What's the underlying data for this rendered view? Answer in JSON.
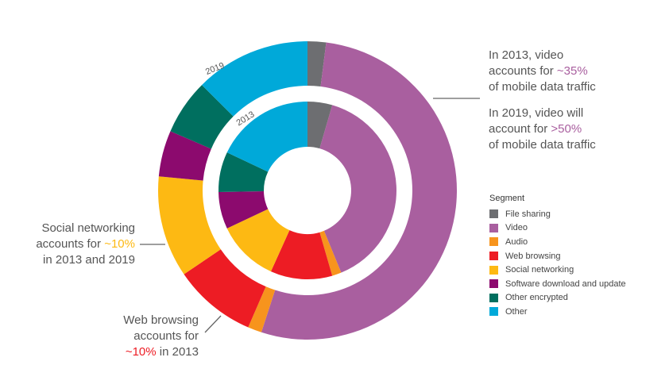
{
  "chart_data": {
    "type": "donut",
    "title": "",
    "series": [
      {
        "name": "2013",
        "values": [
          {
            "segment": "File sharing",
            "value": 4
          },
          {
            "segment": "Video",
            "value": 35
          },
          {
            "segment": "Audio",
            "value": 1.5
          },
          {
            "segment": "Web browsing",
            "value": 10
          },
          {
            "segment": "Social networking",
            "value": 10
          },
          {
            "segment": "Software download and update",
            "value": 6
          },
          {
            "segment": "Other encrypted",
            "value": 6.5
          },
          {
            "segment": "Other",
            "value": 16
          }
        ]
      },
      {
        "name": "2019",
        "values": [
          {
            "segment": "File sharing",
            "value": 2
          },
          {
            "segment": "Video",
            "value": 53
          },
          {
            "segment": "Audio",
            "value": 1.5
          },
          {
            "segment": "Web browsing",
            "value": 9
          },
          {
            "segment": "Social networking",
            "value": 11
          },
          {
            "segment": "Software download and update",
            "value": 5
          },
          {
            "segment": "Other encrypted",
            "value": 6
          },
          {
            "segment": "Other",
            "value": 12.5
          }
        ]
      }
    ],
    "legend": {
      "title": "Segment",
      "placement": "right",
      "items": [
        {
          "label": "File sharing",
          "color": "#6d6e71"
        },
        {
          "label": "Video",
          "color": "#a95f9f"
        },
        {
          "label": "Audio",
          "color": "#f7941d"
        },
        {
          "label": "Web browsing",
          "color": "#ed1c24"
        },
        {
          "label": "Social networking",
          "color": "#fdb913"
        },
        {
          "label": "Software download and update",
          "color": "#8c0a6e"
        },
        {
          "label": "Other encrypted",
          "color": "#006f5f"
        },
        {
          "label": "Other",
          "color": "#00a9d9"
        }
      ]
    }
  },
  "annotations": {
    "video_2013": {
      "pre": "In 2013, video",
      "mid": "accounts for ",
      "hl": "~35%",
      "post": "of mobile data traffic"
    },
    "video_2019": {
      "pre": "In 2019, video will",
      "mid": "account for ",
      "hl": ">50%",
      "post": "of mobile data traffic"
    },
    "social": {
      "pre": "Social networking",
      "mid": "accounts for ",
      "hl": "~10%",
      "post": "in 2013 and 2019"
    },
    "web": {
      "pre": "Web browsing",
      "mid": "accounts for",
      "hl": "~10%",
      "post": " in 2013"
    }
  },
  "colors": {
    "video_highlight": "#a95f9f",
    "social_highlight": "#fdb913",
    "web_highlight": "#ed1c24",
    "leader_line": "#666666"
  }
}
